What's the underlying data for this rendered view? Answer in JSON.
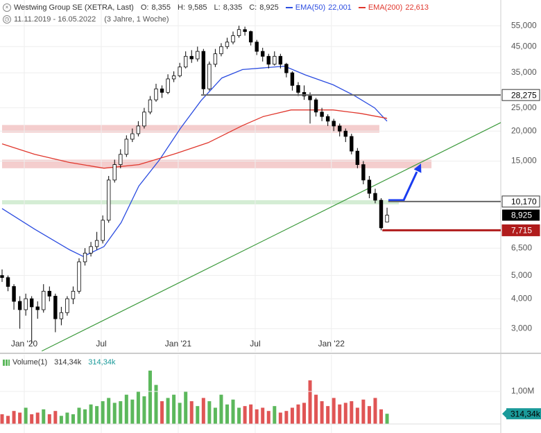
{
  "chart_data": {
    "type": "candlestick",
    "title": "Westwing Group SE (XETRA, Last)",
    "quote": [
      {
        "label": "O:",
        "value": "8,355"
      },
      {
        "label": "H:",
        "value": "9,585"
      },
      {
        "label": "L:",
        "value": "8,335"
      },
      {
        "label": "C:",
        "value": "8,925"
      }
    ],
    "period": "11.11.2019 - 16.05.2022",
    "period_note": "(3 Jahre, 1 Woche)",
    "log_scale": true,
    "grid": true,
    "xlim": [
      -0.35,
      84.2
    ],
    "ylim": [
      2.4,
      70.4
    ],
    "yticks": [
      {
        "value": 55,
        "label": "55,000"
      },
      {
        "value": 45,
        "label": "45,000"
      },
      {
        "value": 35,
        "label": "35,000"
      },
      {
        "value": 25,
        "label": "25,000"
      },
      {
        "value": 20,
        "label": "20,000"
      },
      {
        "value": 15,
        "label": "15,000"
      },
      {
        "value": 6.5,
        "label": "6,500"
      },
      {
        "value": 5,
        "label": "5,000"
      },
      {
        "value": 4,
        "label": "4,000"
      },
      {
        "value": 3,
        "label": "3,000"
      }
    ],
    "xticks": [
      {
        "value": 3.75,
        "label": "Jan '20"
      },
      {
        "value": 16.75,
        "label": "Jul"
      },
      {
        "value": 29.74,
        "label": "Jan '21"
      },
      {
        "value": 42.74,
        "label": "Jul"
      },
      {
        "value": 55.6,
        "label": "Jan '22"
      }
    ],
    "up_color": "#ffffff",
    "down_color": "#000000",
    "ohlc": [
      [
        5.0,
        5.3,
        4.7,
        4.9
      ],
      [
        4.9,
        5.0,
        4.3,
        4.5
      ],
      [
        4.5,
        4.6,
        3.6,
        3.9
      ],
      [
        3.9,
        4.1,
        3.0,
        3.6
      ],
      [
        3.6,
        4.2,
        3.4,
        4.0
      ],
      [
        4.0,
        4.1,
        2.6,
        3.7
      ],
      [
        3.7,
        3.9,
        3.3,
        3.6
      ],
      [
        3.6,
        4.6,
        3.5,
        4.3
      ],
      [
        4.3,
        4.5,
        3.9,
        4.1
      ],
      [
        4.1,
        4.2,
        2.9,
        3.3
      ],
      [
        3.3,
        3.7,
        3.1,
        3.5
      ],
      [
        3.5,
        4.1,
        3.4,
        4.0
      ],
      [
        4.0,
        4.5,
        3.8,
        4.3
      ],
      [
        4.3,
        5.9,
        4.2,
        5.7
      ],
      [
        5.7,
        6.5,
        5.5,
        6.2
      ],
      [
        6.2,
        6.9,
        6.0,
        6.6
      ],
      [
        6.6,
        7.6,
        6.4,
        7.0
      ],
      [
        7.0,
        8.9,
        6.8,
        8.5
      ],
      [
        8.5,
        13.0,
        8.3,
        12.5
      ],
      [
        12.5,
        15.2,
        12.2,
        14.5
      ],
      [
        14.5,
        16.8,
        14.0,
        16.0
      ],
      [
        16.0,
        19.2,
        15.6,
        18.5
      ],
      [
        18.5,
        20.5,
        18.0,
        19.5
      ],
      [
        19.5,
        22.0,
        19.0,
        21.0
      ],
      [
        21.0,
        25.0,
        20.5,
        24.0
      ],
      [
        24.0,
        28.0,
        23.5,
        27.0
      ],
      [
        27.0,
        31.5,
        26.5,
        30.0
      ],
      [
        30.0,
        31.0,
        27.5,
        29.0
      ],
      [
        29.0,
        34.5,
        28.5,
        33.0
      ],
      [
        33.0,
        35.5,
        32.0,
        34.0
      ],
      [
        34.0,
        38.5,
        33.5,
        37.0
      ],
      [
        37.0,
        43.0,
        36.5,
        41.0
      ],
      [
        41.0,
        43.5,
        38.5,
        40.0
      ],
      [
        40.0,
        45.0,
        39.0,
        43.0
      ],
      [
        43.0,
        44.0,
        28.5,
        30.0
      ],
      [
        30.0,
        39.0,
        29.5,
        38.0
      ],
      [
        38.0,
        44.0,
        37.0,
        42.0
      ],
      [
        42.0,
        46.5,
        41.0,
        45.0
      ],
      [
        45.0,
        49.0,
        44.0,
        47.0
      ],
      [
        47.0,
        52.0,
        46.0,
        50.0
      ],
      [
        50.0,
        55.0,
        49.0,
        53.0
      ],
      [
        53.0,
        54.5,
        50.0,
        52.0
      ],
      [
        52.0,
        52.5,
        45.5,
        47.0
      ],
      [
        47.0,
        48.0,
        41.5,
        43.0
      ],
      [
        43.0,
        44.5,
        39.0,
        41.0
      ],
      [
        41.0,
        42.0,
        36.5,
        38.0
      ],
      [
        38.0,
        43.0,
        37.5,
        41.0
      ],
      [
        41.0,
        42.0,
        36.5,
        38.0
      ],
      [
        38.0,
        38.5,
        33.5,
        35.0
      ],
      [
        35.0,
        35.5,
        29.5,
        31.0
      ],
      [
        31.0,
        32.0,
        28.0,
        29.0
      ],
      [
        29.0,
        31.0,
        27.0,
        28.0
      ],
      [
        28.0,
        29.0,
        21.5,
        27.0
      ],
      [
        27.0,
        27.5,
        23.0,
        24.0
      ],
      [
        24.0,
        25.0,
        22.0,
        23.0
      ],
      [
        23.0,
        23.5,
        21.0,
        22.0
      ],
      [
        22.0,
        22.5,
        20.0,
        21.0
      ],
      [
        21.0,
        21.5,
        19.0,
        20.0
      ],
      [
        20.0,
        20.5,
        18.0,
        19.0
      ],
      [
        19.0,
        19.5,
        16.0,
        16.5
      ],
      [
        16.5,
        17.0,
        14.0,
        14.5
      ],
      [
        14.5,
        15.0,
        12.0,
        12.5
      ],
      [
        12.5,
        13.0,
        10.5,
        11.0
      ],
      [
        11.0,
        11.5,
        10.0,
        10.3
      ],
      [
        10.3,
        10.5,
        7.715,
        7.9
      ],
      [
        8.355,
        9.585,
        8.335,
        8.925
      ]
    ],
    "series": [
      {
        "name": "EMA(50)",
        "legend_value": "22,001",
        "color": "#2b4ce0",
        "x": [
          0,
          5.5,
          11.4,
          13.7,
          17.2,
          20.1,
          23.1,
          26.6,
          30.1,
          33.6,
          37.1,
          40.6,
          47.7,
          51.2,
          55.9,
          59.4,
          62.9,
          65
        ],
        "values": [
          9.5,
          7.8,
          6.4,
          6.0,
          6.6,
          8.3,
          11.8,
          15.2,
          20.5,
          26.8,
          33.3,
          36.1,
          37.3,
          34.3,
          31.2,
          28.2,
          25.0,
          22.0
        ]
      },
      {
        "name": "EMA(200)",
        "legend_value": "22,613",
        "color": "#e0362c",
        "x": [
          0,
          5.5,
          11.4,
          17.2,
          23.1,
          28.9,
          34.8,
          40.6,
          44.1,
          48.8,
          55.9,
          60.5,
          65
        ],
        "values": [
          17.7,
          16.0,
          14.8,
          14.0,
          14.5,
          16.0,
          17.9,
          21.1,
          23.0,
          24.5,
          24.5,
          23.7,
          22.6
        ]
      }
    ],
    "trendline": {
      "color": "#3c9a3c",
      "x": [
        6.7,
        84.2
      ],
      "values": [
        2.42,
        21.7
      ]
    },
    "zones": [
      {
        "from": 19.7,
        "to": 21.2,
        "start": 0,
        "end": 63.7,
        "color": "#f2c4c4"
      },
      {
        "from": 14.0,
        "to": 15.2,
        "start": 0,
        "end": 72.5,
        "color": "#f2c4c4"
      },
      {
        "from": 9.9,
        "to": 10.3,
        "start": 0,
        "end": 67,
        "color": "#cdeacd"
      }
    ],
    "levels": [
      {
        "value": 28.275,
        "label": "28,275",
        "start": 33.6,
        "color": "#666666",
        "label_bg": "#ffffff",
        "label_fg": "#000000"
      },
      {
        "value": 10.17,
        "label": "10,170",
        "start": 65.2,
        "color": "#666666",
        "label_bg": "#ffffff",
        "label_fg": "#000000"
      },
      {
        "value": 7.715,
        "label": "7,715",
        "start": 64.2,
        "color": "#b01c1c",
        "label_bg": "#b01c1c",
        "label_fg": "#ffffff"
      }
    ],
    "price_label": {
      "value": 8.925,
      "label": "8,925"
    },
    "volume": {
      "name": "Volume(1)",
      "up_color": "#5cb85c",
      "down_color": "#e05555",
      "ylim": [
        0,
        2000000
      ],
      "yticks": [
        {
          "value": 1000000,
          "label": "1,00M"
        }
      ],
      "values": [
        300000,
        250000,
        400000,
        350000,
        500000,
        300000,
        350000,
        450000,
        300000,
        400000,
        250000,
        350000,
        300000,
        500000,
        450000,
        600000,
        550000,
        700000,
        800000,
        650000,
        700000,
        900000,
        750000,
        1000000,
        850000,
        1640000,
        1200000,
        700000,
        800000,
        900000,
        650000,
        1000000,
        700000,
        550000,
        800000,
        700000,
        500000,
        900000,
        600000,
        750000,
        500000,
        550000,
        600000,
        450000,
        500000,
        400000,
        550000,
        350000,
        400000,
        500000,
        600000,
        650000,
        1340000,
        900000,
        700000,
        550000,
        800000,
        600000,
        650000,
        700000,
        500000,
        750000,
        550000,
        800000,
        450000,
        314340
      ],
      "last_label": {
        "value": 314340,
        "label": "314,34k",
        "color": "#1a9a9a"
      }
    }
  }
}
